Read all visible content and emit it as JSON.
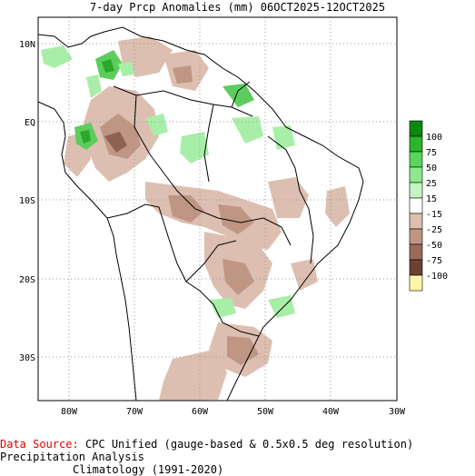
{
  "title": "7-day Prcp Anomalies (mm) 06OCT2025-12OCT2025",
  "lon_ticks": [
    "80W",
    "70W",
    "60W",
    "50W",
    "40W",
    "30W"
  ],
  "lat_ticks": [
    "10N",
    "EQ",
    "10S",
    "20S",
    "30S"
  ],
  "legend": {
    "labels": [
      "100",
      "75",
      "50",
      "25",
      "15",
      "-15",
      "-25",
      "-50",
      "-75",
      "-100"
    ],
    "colors": [
      "#0a8a0a",
      "#2cb52c",
      "#5ad65a",
      "#8ee88e",
      "#c4f4c4",
      "#ffffff",
      "#dcbfb0",
      "#bf9684",
      "#9a6b5a",
      "#6d4232",
      "#fff6a8"
    ]
  },
  "anomaly_colors": {
    "wet_strong": "#2aa82a",
    "wet_moderate": "#5ccc5c",
    "wet_light": "#a8eea8",
    "dry_light": "#dcbfb0",
    "dry_moderate": "#bf9684",
    "dry_strong": "#8e6252"
  },
  "footer": {
    "source_label": "Data Source:",
    "source_text": "CPC Unified (gauge-based & 0.5x0.5 deg resolution) Precipitation Analysis",
    "climatology": "Climatology (1991-2020)"
  }
}
